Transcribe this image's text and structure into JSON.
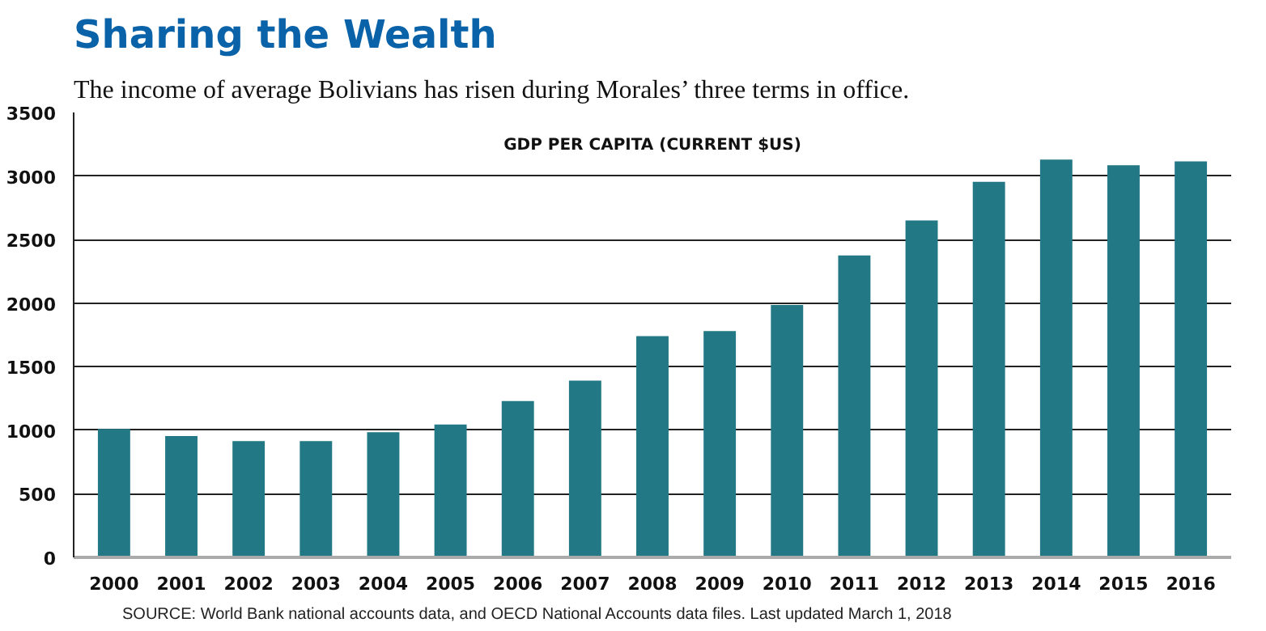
{
  "chart_data": {
    "type": "bar",
    "title": "Sharing the Wealth",
    "subtitle": "The income of average Bolivians has risen during Morales’ three terms in office.",
    "ylabel": "GDP PER CAPITA (CURRENT $US)",
    "annotations": [
      "SOURCE: World Bank national accounts data, and OECD National Accounts data files. Last updated March 1, 2018"
    ],
    "categories": [
      "2000",
      "2001",
      "2002",
      "2003",
      "2004",
      "2005",
      "2006",
      "2007",
      "2008",
      "2009",
      "2010",
      "2011",
      "2012",
      "2013",
      "2014",
      "2015",
      "2016"
    ],
    "values": [
      1010,
      955,
      915,
      915,
      985,
      1045,
      1230,
      1390,
      1740,
      1780,
      1985,
      2375,
      2650,
      2955,
      3130,
      3085,
      3115
    ],
    "color": "#237886",
    "ylim": [
      0,
      3500
    ],
    "yticks": [
      0,
      500,
      1000,
      1500,
      2000,
      2500,
      3000,
      3500
    ],
    "grid": "y"
  }
}
